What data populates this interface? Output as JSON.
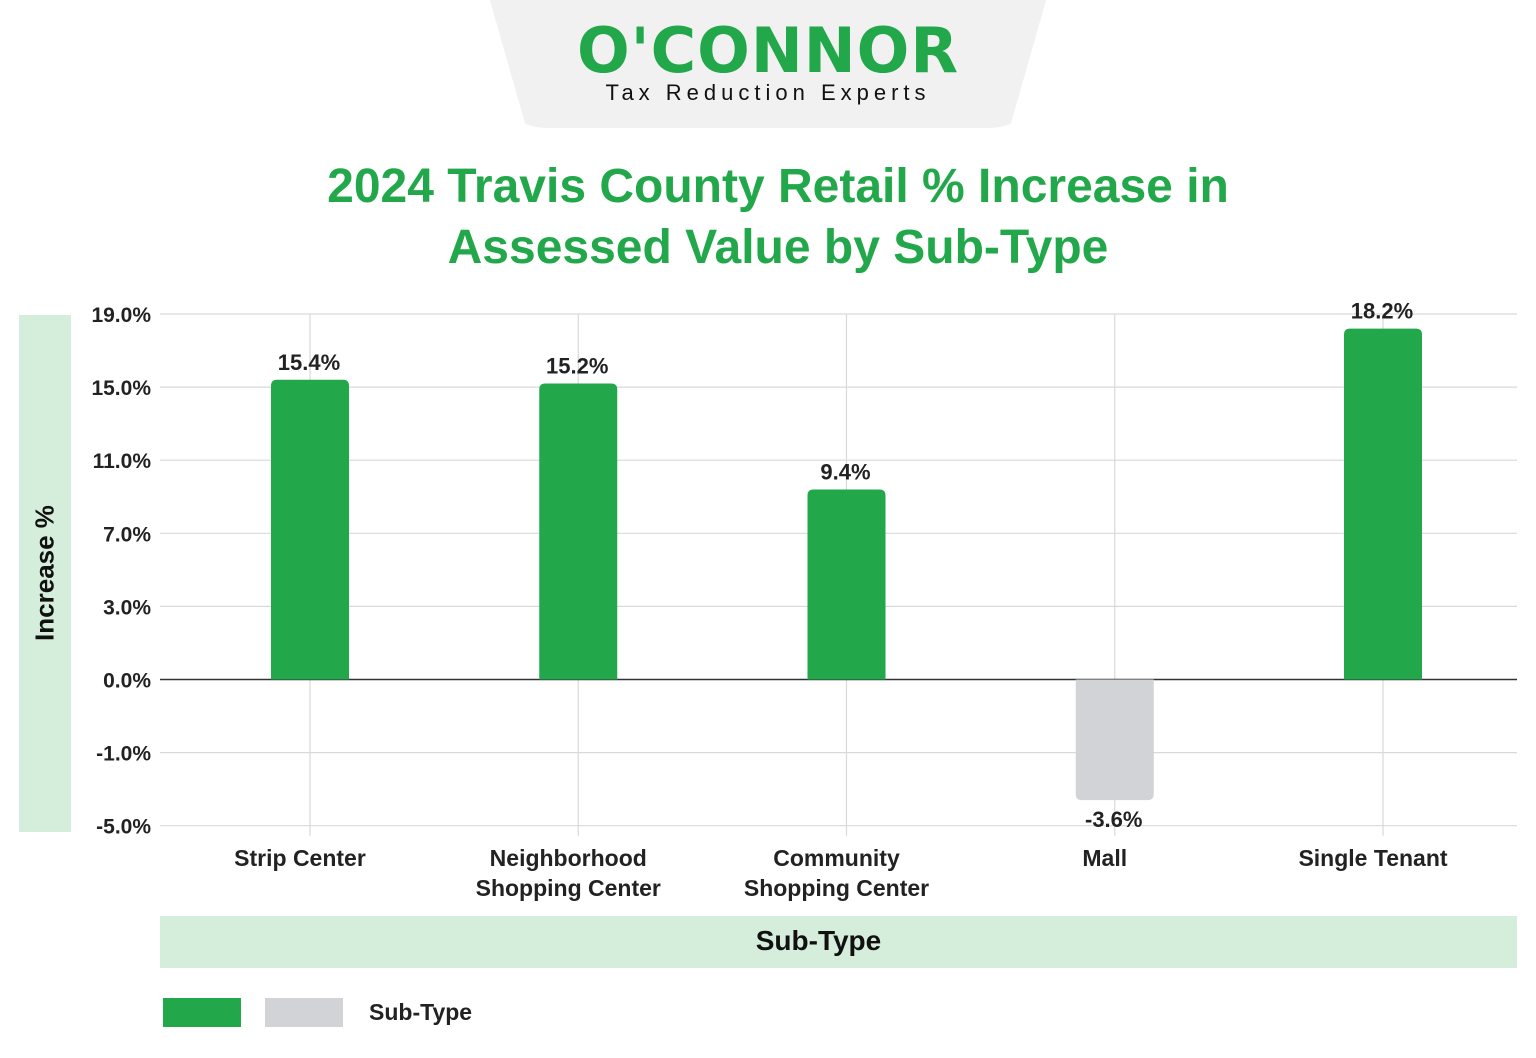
{
  "logo": {
    "wordmark": "O'CONNOR",
    "tagline": "Tax Reduction Experts"
  },
  "chart_data": {
    "type": "bar",
    "title": "2024 Travis County Retail % Increase in Assessed Value by Sub-Type",
    "xlabel": "Sub-Type",
    "ylabel": "Increase %",
    "categories": [
      "Strip Center",
      "Neighborhood Shopping Center",
      "Community Shopping Center",
      "Mall",
      "Single Tenant"
    ],
    "category_lines": [
      [
        "Strip Center"
      ],
      [
        "Neighborhood",
        "Shopping Center"
      ],
      [
        "Community",
        "Shopping Center"
      ],
      [
        "Mall"
      ],
      [
        "Single Tenant"
      ]
    ],
    "values": [
      15.4,
      15.2,
      9.4,
      -3.6,
      18.2
    ],
    "data_labels": [
      "15.4%",
      "15.2%",
      "9.4%",
      "-3.6%",
      "18.2%"
    ],
    "yticks": [
      19,
      15,
      11,
      7,
      3,
      0,
      -1,
      -5
    ],
    "ytick_labels": [
      "19.0%",
      "15.0%",
      "11.0%",
      "7.0%",
      "3.0%",
      "0.0%",
      "-1.0%",
      "-5.0%"
    ],
    "ylim": [
      -5,
      19
    ],
    "grid": true,
    "legend": {
      "position": "bottom-left",
      "label": "Sub-Type"
    },
    "colors": {
      "positive": "#22a84a",
      "negative": "#d1d3d6",
      "title": "#22a84a",
      "band": "#d5eedc"
    }
  }
}
